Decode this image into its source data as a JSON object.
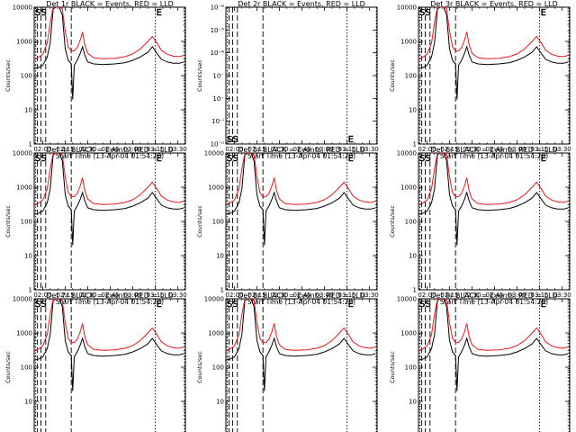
{
  "chart_data": {
    "type": "line",
    "yscale": "log",
    "ylim": [
      1,
      10000
    ],
    "xlim": [
      "01:54:20",
      "03:35:00"
    ],
    "ylabel": "Counts/sec",
    "xlabel": "Start Time (13-Apr-04 01:54:20)",
    "x_ticks": [
      "02:00",
      "02:15",
      "02:30",
      "02:45",
      "03:00",
      "03:15",
      "03:30"
    ],
    "y_ticks": [
      "1",
      "10",
      "100",
      "1000",
      "10000"
    ],
    "empty_y_ticks": [
      "10⁻⁰",
      "10⁻ⁱ",
      "10⁻⁲",
      "10⁻⁳",
      "10⁻⁴",
      "10⁻⁵",
      "10⁻⁶"
    ],
    "vline_labels": {
      "ss": "SS",
      "e": "E"
    },
    "vlines": {
      "dashed": [
        "01:56:30",
        "01:58:50",
        "02:02:00",
        "02:19:00"
      ],
      "dotted": [
        "01:55:20",
        "03:15:00",
        "03:34:30"
      ]
    },
    "red_series": {
      "name": "LLD",
      "x": [
        "01:54:20",
        "01:57:00",
        "02:00:00",
        "02:03:00",
        "02:05:00",
        "02:07:00",
        "02:09:00",
        "02:11:00",
        "02:13:00",
        "02:15:00",
        "02:17:00",
        "02:19:00",
        "02:21:00",
        "02:23:00",
        "02:25:00",
        "02:26:30",
        "02:28:00",
        "02:30:00",
        "02:34:00",
        "02:40:00",
        "02:48:00",
        "02:55:00",
        "03:00:00",
        "03:05:00",
        "03:10:00",
        "03:13:00",
        "03:16:00",
        "03:19:00",
        "03:23:00",
        "03:27:00",
        "03:31:00",
        "03:34:00"
      ],
      "values": [
        300,
        340,
        420,
        900,
        3500,
        10000,
        10000,
        10000,
        9000,
        2000,
        700,
        520,
        530,
        650,
        1100,
        1900,
        800,
        450,
        330,
        310,
        320,
        360,
        430,
        600,
        1000,
        1400,
        900,
        550,
        420,
        370,
        360,
        390
      ]
    },
    "black_series": {
      "name": "Events",
      "x": [
        "01:54:20",
        "01:57:00",
        "02:00:00",
        "02:03:00",
        "02:05:00",
        "02:07:00",
        "02:09:00",
        "02:11:00",
        "02:13:00",
        "02:15:00",
        "02:17:00",
        "02:19:00",
        "02:20:00",
        "02:21:00",
        "02:23:00",
        "02:25:00",
        "02:26:30",
        "02:28:00",
        "02:30:00",
        "02:34:00",
        "02:40:00",
        "02:48:00",
        "02:55:00",
        "03:00:00",
        "03:05:00",
        "03:10:00",
        "03:13:00",
        "03:16:00",
        "03:19:00",
        "03:23:00",
        "03:27:00",
        "03:31:00",
        "03:34:00"
      ],
      "values": [
        160,
        170,
        200,
        350,
        900,
        9000,
        10000,
        10000,
        6000,
        600,
        280,
        220,
        20,
        200,
        280,
        450,
        700,
        400,
        250,
        220,
        210,
        220,
        240,
        280,
        350,
        480,
        700,
        450,
        300,
        250,
        230,
        230,
        250
      ]
    },
    "panels": [
      {
        "title": "Det 1r BLACK = Events, RED = LLD",
        "has_data": true
      },
      {
        "title": "Det 2r BLACK = Events, RED = LLD",
        "has_data": false
      },
      {
        "title": "Det 3r BLACK = Events, RED = LLD",
        "has_data": true
      },
      {
        "title": "Det 4r BLACK = Events, RED = LLD",
        "has_data": true
      },
      {
        "title": "Det 5r BLACK = Events, RED = LLD",
        "has_data": true
      },
      {
        "title": "Det 6r BLACK = Events, RED = LLD",
        "has_data": true
      },
      {
        "title": "Det 7r BLACK = Events, RED = LLD",
        "has_data": true
      },
      {
        "title": "Det 8r BLACK = Events, RED = LLD",
        "has_data": true
      },
      {
        "title": "Det 9r BLACK = Events, RED = LLD",
        "has_data": true
      }
    ],
    "colors": {
      "red": "#e8181c",
      "black": "#000000"
    },
    "grid": false,
    "legend": "none"
  }
}
